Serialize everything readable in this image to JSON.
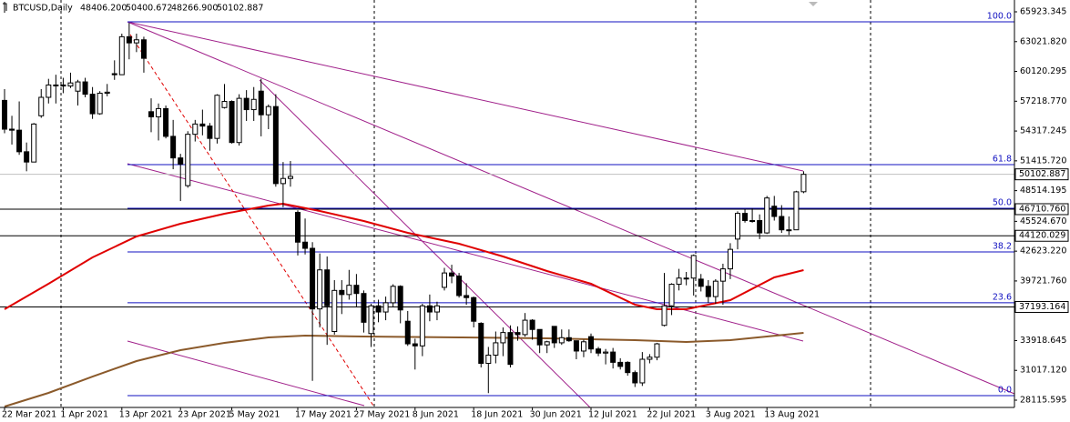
{
  "chart_data": {
    "type": "candlestick",
    "header": {
      "symbol": "BTCUSD,Daily",
      "values": [
        "48406.200",
        "50400.672",
        "48266.900",
        "50102.887"
      ]
    },
    "ylim": [
      27407,
      67074
    ],
    "yticks": [
      65923.345,
      {
        "value": 63021.82,
        "label": "63021.820"
      },
      60120.295,
      {
        "value": 57218.77,
        "label": "57218.770"
      },
      54317.245,
      {
        "value": 51415.72,
        "label": "51415.720"
      },
      48514.195,
      {
        "value": 45524.67,
        "label": "45524.670"
      },
      {
        "value": 42623.22,
        "label": "42623.220"
      },
      {
        "value": 39721.76,
        "label": "39721.760"
      },
      33918.645,
      {
        "value": 31017.12,
        "label": "31017.120"
      },
      28115.595
    ],
    "xticks": [
      {
        "value": 0,
        "label": "22 Mar 2021"
      },
      {
        "value": 8,
        "label": "1 Apr 2021"
      },
      {
        "value": 16,
        "label": "13 Apr 2021"
      },
      {
        "value": 24,
        "label": "23 Apr 2021"
      },
      {
        "value": 31,
        "label": "5 May 2021"
      },
      {
        "value": 40,
        "label": "17 May 2021"
      },
      {
        "value": 48,
        "label": "27 May 2021"
      },
      {
        "value": 56,
        "label": "8 Jun 2021"
      },
      {
        "value": 64,
        "label": "18 Jun 2021"
      },
      {
        "value": 72,
        "label": "30 Jun 2021"
      },
      {
        "value": 80,
        "label": "12 Jul 2021"
      },
      {
        "value": 88,
        "label": "22 Jul 2021"
      },
      {
        "value": 96,
        "label": "3 Aug 2021"
      },
      {
        "value": 104,
        "label": "13 Aug 2021"
      }
    ],
    "open": [
      57300,
      54500,
      54400,
      52300,
      51300,
      55800,
      57600,
      58800,
      58800,
      58700,
      58200,
      59100,
      57900,
      56000,
      58000,
      59900,
      59800,
      63500,
      62900,
      63200,
      56200,
      55700,
      56500,
      53800,
      51700,
      49000,
      54000,
      55000,
      54800,
      53600,
      56600,
      57200,
      53200,
      57500,
      56400,
      58200,
      55900,
      56700,
      49200,
      49700,
      46400,
      43500,
      42900,
      37000,
      40800,
      34800,
      38800,
      38400,
      39300,
      38500,
      34600,
      37300,
      36700,
      37600,
      39200,
      35800,
      33600,
      33400,
      37300,
      36700,
      39100,
      40500,
      40200,
      38300,
      38100,
      35600,
      31700,
      32500,
      33700,
      34700,
      34700,
      34500,
      35900,
      35000,
      33500,
      35300,
      33700,
      34200,
      33900,
      32900,
      34300,
      33100,
      32700,
      32800,
      31800,
      31800,
      30800,
      29800,
      32100,
      32300,
      35400,
      37300,
      39400,
      40000,
      40000,
      39900,
      39200,
      38200,
      39700,
      40900,
      43800,
      46300,
      45600,
      45600,
      44400,
      47000,
      46000,
      44700,
      44700,
      48406.2
    ],
    "high": [
      58400,
      55800,
      57200,
      53200,
      55100,
      58400,
      59400,
      59800,
      59500,
      60000,
      59300,
      59500,
      58600,
      58200,
      58900,
      61200,
      63800,
      64854,
      63800,
      63500,
      57500,
      57000,
      56800,
      55400,
      52100,
      54300,
      55400,
      56400,
      55100,
      57900,
      58900,
      57300,
      57900,
      58300,
      58600,
      59400,
      56900,
      57900,
      51300,
      51400,
      46600,
      45800,
      43500,
      42400,
      42100,
      39800,
      39800,
      40800,
      40400,
      38800,
      37500,
      37900,
      38200,
      39400,
      39300,
      36800,
      34100,
      37500,
      38400,
      37700,
      41000,
      41300,
      40500,
      39500,
      38200,
      35700,
      33300,
      34800,
      35200,
      35400,
      35300,
      36600,
      36000,
      35000,
      33900,
      35300,
      35000,
      35000,
      33900,
      34000,
      34600,
      33300,
      33100,
      33200,
      32200,
      31900,
      31000,
      32800,
      32600,
      33700,
      40500,
      39500,
      40900,
      40600,
      42300,
      40400,
      39800,
      39900,
      41400,
      43400,
      46500,
      46700,
      46800,
      46200,
      48000,
      48000,
      47100,
      46000,
      48500,
      50400.672
    ],
    "low": [
      54100,
      53000,
      52000,
      50400,
      51300,
      55600,
      57000,
      57000,
      58000,
      58500,
      56800,
      57600,
      55500,
      55900,
      57700,
      59300,
      59800,
      61300,
      62000,
      60000,
      54200,
      53400,
      53600,
      50600,
      47500,
      48800,
      53300,
      53900,
      52400,
      53100,
      56500,
      53100,
      52900,
      55300,
      55300,
      53800,
      54500,
      48900,
      46900,
      48900,
      42200,
      42300,
      30000,
      35200,
      33500,
      34500,
      36500,
      37900,
      37200,
      34700,
      33300,
      35700,
      35900,
      37200,
      35600,
      33400,
      31100,
      32400,
      35800,
      35900,
      38800,
      39500,
      38100,
      37400,
      35200,
      31300,
      28800,
      31700,
      32400,
      31300,
      33900,
      34300,
      34000,
      32700,
      32700,
      33200,
      33500,
      33800,
      32100,
      32300,
      32700,
      32400,
      31600,
      31200,
      31100,
      30500,
      29400,
      29500,
      31700,
      32000,
      35300,
      36400,
      38800,
      39300,
      38300,
      38700,
      37600,
      37500,
      37400,
      39900,
      42800,
      45400,
      45400,
      43800,
      44300,
      45600,
      44400,
      44200,
      44700,
      48266.9
    ],
    "close": [
      54500,
      54400,
      52300,
      51300,
      55000,
      57600,
      58800,
      58800,
      58700,
      59000,
      59100,
      57900,
      56000,
      58000,
      58100,
      59800,
      63500,
      62900,
      63200,
      61400,
      55700,
      56500,
      53800,
      51700,
      51100,
      54000,
      55000,
      54800,
      53600,
      57800,
      57200,
      53200,
      57500,
      56400,
      57400,
      55900,
      56700,
      49200,
      49700,
      49900,
      43500,
      42900,
      37000,
      40800,
      37300,
      38800,
      38400,
      39300,
      38500,
      35700,
      37300,
      36700,
      37600,
      39200,
      36900,
      33600,
      33400,
      37300,
      36700,
      37300,
      40500,
      40200,
      38300,
      38100,
      35800,
      31700,
      32500,
      33700,
      34700,
      31600,
      34500,
      35900,
      35000,
      33500,
      33800,
      33700,
      34200,
      33900,
      32900,
      33800,
      33100,
      32700,
      32800,
      31800,
      31400,
      30800,
      29800,
      32100,
      32300,
      33600,
      37300,
      39400,
      40000,
      40000,
      42200,
      39200,
      38200,
      39700,
      40900,
      42800,
      46300,
      45600,
      45600,
      44400,
      47800,
      46000,
      44700,
      44700,
      48400,
      50102.887
    ],
    "lines": [
      {
        "color": "#e00000",
        "x": [
          0,
          6,
          12,
          18,
          24,
          30,
          36,
          38,
          43,
          49,
          55,
          62,
          68,
          74,
          80,
          86,
          89,
          93,
          99,
          105,
          109
        ],
        "values": [
          36970,
          39449,
          42017,
          44053,
          45293,
          46267,
          47063,
          47240,
          46532,
          45558,
          44407,
          43345,
          42105,
          40688,
          39449,
          37412,
          36970,
          36970,
          37855,
          40069,
          40777
        ]
      },
      {
        "color": "#8b5a2b",
        "x": [
          0,
          6,
          12,
          18,
          24,
          30,
          36,
          41,
          49,
          62,
          74,
          86,
          93,
          99,
          109
        ],
        "values": [
          27495,
          28824,
          30417,
          31923,
          32985,
          33694,
          34225,
          34402,
          34313,
          34225,
          34136,
          33959,
          33782,
          33959,
          34668
        ]
      }
    ],
    "fib_levels": [
      {
        "level": "100.0",
        "price": 64949
      },
      {
        "level": "61.8",
        "price": 51048
      },
      {
        "level": "50.0",
        "price": 46800
      },
      {
        "level": "38.2",
        "price": 42548
      },
      {
        "level": "23.6",
        "price": 37600
      },
      {
        "level": "0.0",
        "price": 28558
      }
    ],
    "price_levels": [
      {
        "value": 46710.76,
        "label": "46710.760"
      },
      {
        "value": 44120.029,
        "label": "44120.029"
      },
      {
        "value": 37193.164,
        "label": "37193.164"
      }
    ],
    "last_price": 50102.887
  }
}
